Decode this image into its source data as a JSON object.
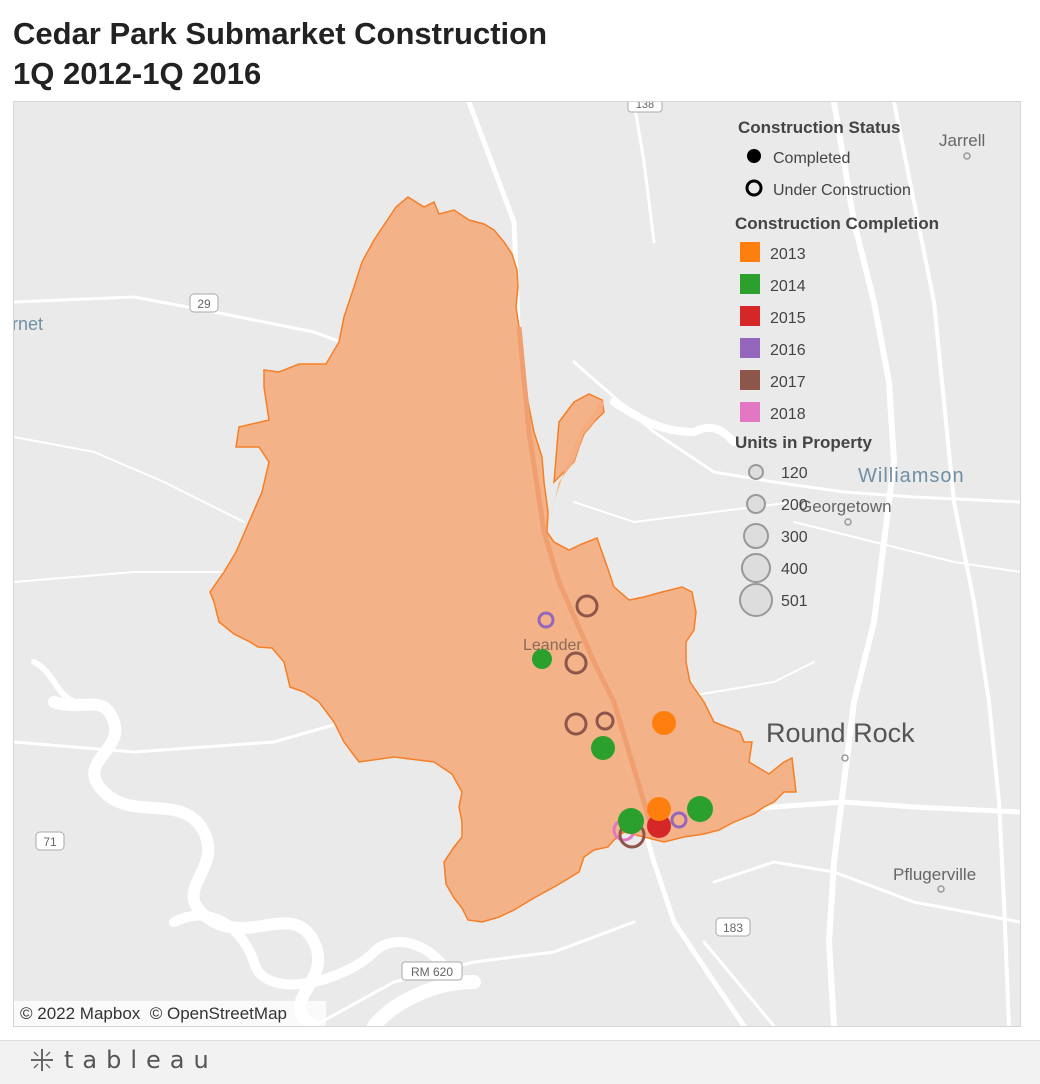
{
  "title": {
    "line1": "Cedar Park Submarket Construction",
    "line2": "1Q 2012-1Q 2016"
  },
  "map_labels": {
    "jarrell": "Jarrell",
    "bernet": "rnet",
    "williamson": "Williamson",
    "georgetown": "Georgetown",
    "leander": "Leander",
    "round_rock": "Round Rock",
    "pflugerville": "Pflugerville"
  },
  "road_shields": {
    "r138": "138",
    "r29": "29",
    "r71": "71",
    "r183": "183",
    "rm620": "RM 620"
  },
  "attribution": "© 2022 Mapbox  © OpenStreetMap",
  "legend": {
    "status_title": "Construction Status",
    "status_items": [
      "Completed",
      "Under Construction"
    ],
    "completion_title": "Construction Completion",
    "completion_items": [
      {
        "label": "2013",
        "color": "#ff7f0e"
      },
      {
        "label": "2014",
        "color": "#2ca02c"
      },
      {
        "label": "2015",
        "color": "#d62728"
      },
      {
        "label": "2016",
        "color": "#9467bd"
      },
      {
        "label": "2017",
        "color": "#8c564b"
      },
      {
        "label": "2018",
        "color": "#e377c2"
      }
    ],
    "units_title": "Units in Property",
    "units_items": [
      "120",
      "200",
      "300",
      "400",
      "501"
    ]
  },
  "submarket_fill_color": "#f4ad7f",
  "footer": {
    "brand": "tableau"
  }
}
